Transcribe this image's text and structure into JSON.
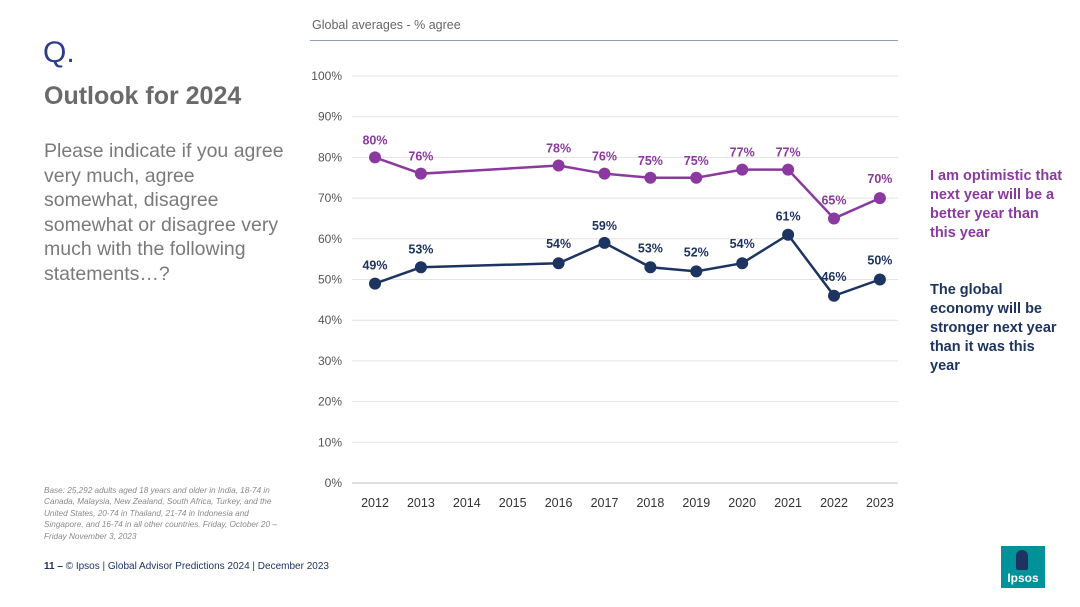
{
  "slide": {
    "q_letter": "Q.",
    "title": "Outlook for 2024",
    "question": "Please indicate if you agree very much, agree somewhat, disagree somewhat or disagree very much with the following statements…?",
    "base_note": "Base: 25,292 adults aged 18 years and older in India, 18-74 in Canada, Malaysia, New Zealand, South Africa, Turkey, and the United States, 20-74 in Thailand, 21-74 in Indonesia and Singapore, and 16-74 in all other countries. Friday, October 20 – Friday November 3, 2023",
    "footer_page": "11 –",
    "footer_text": " © Ipsos | Global Advisor Predictions 2024 | December 2023",
    "logo_text": "Ipsos",
    "logo_color": "#00929b"
  },
  "chart_data": {
    "type": "line",
    "title": "Global averages - % agree",
    "x": [
      2012,
      2013,
      2014,
      2015,
      2016,
      2017,
      2018,
      2019,
      2020,
      2021,
      2022,
      2023
    ],
    "ylim": [
      0,
      100
    ],
    "yticks": [
      "0%",
      "10%",
      "20%",
      "30%",
      "40%",
      "50%",
      "60%",
      "70%",
      "80%",
      "90%",
      "100%"
    ],
    "grid": true,
    "legend_position": "right",
    "series": [
      {
        "name": "I am optimistic that next year will be a better year than this year",
        "color": "#8a3a9f",
        "points": [
          {
            "x": 2012,
            "y": 80,
            "label": "80%"
          },
          {
            "x": 2013,
            "y": 76,
            "label": "76%"
          },
          {
            "x": 2016,
            "y": 78,
            "label": "78%"
          },
          {
            "x": 2017,
            "y": 76,
            "label": "76%"
          },
          {
            "x": 2018,
            "y": 75,
            "label": "75%"
          },
          {
            "x": 2019,
            "y": 75,
            "label": "75%"
          },
          {
            "x": 2020,
            "y": 77,
            "label": "77%"
          },
          {
            "x": 2021,
            "y": 77,
            "label": "77%"
          },
          {
            "x": 2022,
            "y": 65,
            "label": "65%"
          },
          {
            "x": 2023,
            "y": 70,
            "label": "70%"
          }
        ]
      },
      {
        "name": "The global economy will be stronger next year than it was this year",
        "color": "#1d3460",
        "points": [
          {
            "x": 2012,
            "y": 49,
            "label": "49%"
          },
          {
            "x": 2013,
            "y": 53,
            "label": "53%"
          },
          {
            "x": 2016,
            "y": 54,
            "label": "54%"
          },
          {
            "x": 2017,
            "y": 59,
            "label": "59%"
          },
          {
            "x": 2018,
            "y": 53,
            "label": "53%"
          },
          {
            "x": 2019,
            "y": 52,
            "label": "52%"
          },
          {
            "x": 2020,
            "y": 54,
            "label": "54%"
          },
          {
            "x": 2021,
            "y": 61,
            "label": "61%"
          },
          {
            "x": 2022,
            "y": 46,
            "label": "46%"
          },
          {
            "x": 2023,
            "y": 50,
            "label": "50%"
          }
        ]
      }
    ]
  }
}
